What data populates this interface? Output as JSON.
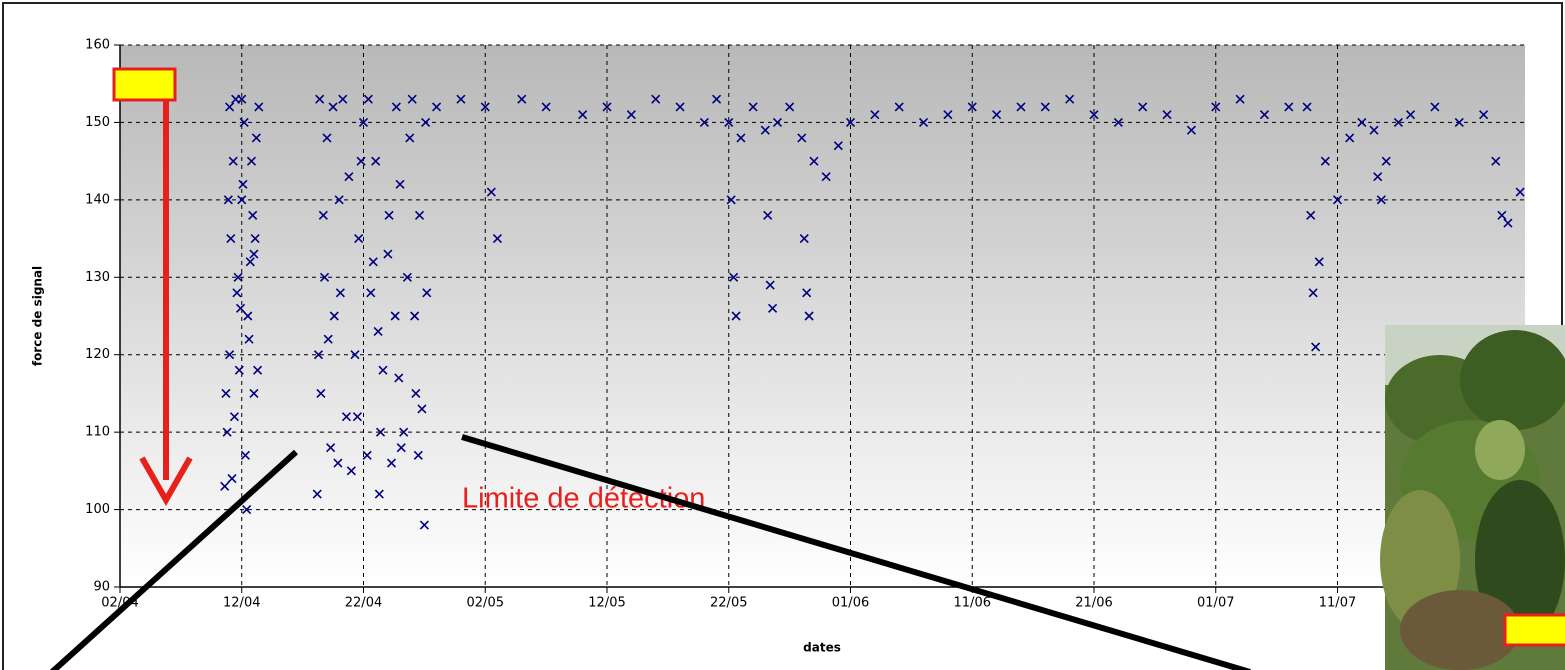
{
  "chart_data": {
    "type": "scatter",
    "xlabel": "dates",
    "ylabel": "force de signal",
    "annotation": "Limite de détection",
    "color": "#000080",
    "grid": true,
    "xlim": [
      0,
      115.4
    ],
    "ylim": [
      90,
      160
    ],
    "yticks": [
      90,
      100,
      110,
      120,
      130,
      140,
      150,
      160
    ],
    "xticks": [
      {
        "value": 0,
        "label": "02/04"
      },
      {
        "value": 10,
        "label": "12/04"
      },
      {
        "value": 20,
        "label": "22/04"
      },
      {
        "value": 30,
        "label": "02/05"
      },
      {
        "value": 40,
        "label": "12/05"
      },
      {
        "value": 50,
        "label": "22/05"
      },
      {
        "value": 60,
        "label": "01/06"
      },
      {
        "value": 70,
        "label": "11/06"
      },
      {
        "value": 80,
        "label": "21/06"
      },
      {
        "value": 90,
        "label": "01/07"
      },
      {
        "value": 100,
        "label": "11/07"
      }
    ],
    "x": [
      8.6,
      8.8,
      9.0,
      9.1,
      9.3,
      9.5,
      9.6,
      9.8,
      10.0,
      10.2,
      10.3,
      10.5,
      10.7,
      10.9,
      11.0,
      11.2,
      11.4,
      8.7,
      9.2,
      9.7,
      10.1,
      10.6,
      11.1,
      8.9,
      9.4,
      9.9,
      10.4,
      10.8,
      11.3,
      9.0,
      10.0,
      11.0,
      16.2,
      16.5,
      16.8,
      17.0,
      17.3,
      17.6,
      18.0,
      18.3,
      18.6,
      19.0,
      19.3,
      19.6,
      20.0,
      20.3,
      20.6,
      21.0,
      21.3,
      21.6,
      22.0,
      22.3,
      22.6,
      23.0,
      23.3,
      23.6,
      24.0,
      24.3,
      24.6,
      25.0,
      25.2,
      16.4,
      17.1,
      17.9,
      18.8,
      19.5,
      20.4,
      21.2,
      22.1,
      22.9,
      23.8,
      24.5,
      25.1,
      16.7,
      18.1,
      19.8,
      21.4,
      22.7,
      24.2,
      16.3,
      17.5,
      20.8,
      23.1,
      24.8,
      26,
      28,
      30,
      30.5,
      31,
      33,
      35,
      38,
      40,
      42,
      44,
      46,
      48,
      49,
      50.0,
      50.2,
      50.4,
      50.6,
      51,
      52,
      53.0,
      53.2,
      53.4,
      53.6,
      54,
      55,
      56.0,
      56.2,
      56.4,
      56.6,
      57,
      58,
      59,
      60,
      62,
      64,
      66,
      68,
      70,
      72,
      74,
      76,
      78,
      80,
      82,
      84,
      86,
      88,
      90,
      92,
      94,
      96,
      97.5,
      97.8,
      98.0,
      98.2,
      98.5,
      99,
      100,
      101,
      102,
      103.0,
      103.3,
      103.6,
      104,
      105,
      106,
      108,
      110,
      112,
      113,
      113.5,
      114,
      115
    ],
    "values": [
      103,
      110,
      120,
      135,
      145,
      153,
      128,
      118,
      140,
      150,
      107,
      125,
      132,
      138,
      115,
      148,
      152,
      115,
      104,
      130,
      142,
      122,
      135,
      140,
      112,
      126,
      100,
      145,
      118,
      152,
      153,
      133,
      102,
      115,
      130,
      148,
      108,
      125,
      140,
      153,
      112,
      105,
      120,
      135,
      150,
      107,
      128,
      145,
      102,
      118,
      133,
      106,
      125,
      142,
      110,
      130,
      153,
      115,
      138,
      98,
      128,
      153,
      122,
      106,
      143,
      112,
      153,
      123,
      138,
      117,
      148,
      107,
      150,
      138,
      128,
      145,
      110,
      152,
      125,
      120,
      152,
      132,
      108,
      113,
      152,
      153,
      152,
      141,
      135,
      153,
      152,
      151,
      152,
      151,
      153,
      152,
      150,
      153,
      150,
      140,
      130,
      125,
      148,
      152,
      149,
      138,
      129,
      126,
      150,
      152,
      148,
      135,
      128,
      125,
      145,
      143,
      147,
      150,
      151,
      152,
      150,
      151,
      152,
      151,
      152,
      152,
      153,
      151,
      150,
      152,
      151,
      149,
      152,
      153,
      151,
      152,
      152,
      138,
      128,
      121,
      132,
      145,
      140,
      148,
      150,
      149,
      143,
      140,
      145,
      150,
      151,
      152,
      150,
      151,
      145,
      138,
      137,
      141
    ]
  }
}
